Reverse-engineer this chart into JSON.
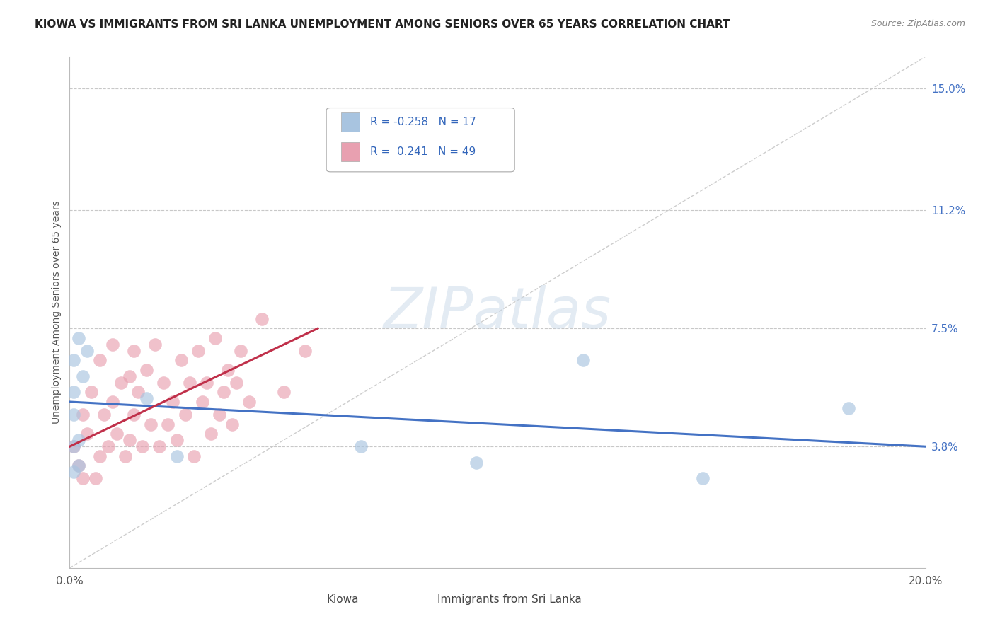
{
  "title": "KIOWA VS IMMIGRANTS FROM SRI LANKA UNEMPLOYMENT AMONG SENIORS OVER 65 YEARS CORRELATION CHART",
  "source": "Source: ZipAtlas.com",
  "ylabel": "Unemployment Among Seniors over 65 years",
  "xlim": [
    0.0,
    0.2
  ],
  "ylim": [
    0.0,
    0.16
  ],
  "ytick_right_vals": [
    0.038,
    0.075,
    0.112,
    0.15
  ],
  "ytick_right_labels": [
    "3.8%",
    "7.5%",
    "11.2%",
    "15.0%"
  ],
  "watermark": "ZIPatlas",
  "legend_r1": "-0.258",
  "legend_n1": "17",
  "legend_r2": "0.241",
  "legend_n2": "49",
  "blue_color": "#a8c4e0",
  "pink_color": "#e8a0b0",
  "blue_line_color": "#4472c4",
  "pink_line_color": "#c0304a",
  "grid_color": "#c8c8c8",
  "kiowa_x": [
    0.001,
    0.001,
    0.001,
    0.001,
    0.001,
    0.002,
    0.002,
    0.002,
    0.003,
    0.004,
    0.018,
    0.025,
    0.068,
    0.095,
    0.12,
    0.148,
    0.182
  ],
  "kiowa_y": [
    0.03,
    0.038,
    0.048,
    0.055,
    0.065,
    0.032,
    0.04,
    0.072,
    0.06,
    0.068,
    0.053,
    0.035,
    0.038,
    0.033,
    0.065,
    0.028,
    0.05
  ],
  "srilanka_x": [
    0.001,
    0.002,
    0.003,
    0.003,
    0.004,
    0.005,
    0.006,
    0.007,
    0.007,
    0.008,
    0.009,
    0.01,
    0.01,
    0.011,
    0.012,
    0.013,
    0.014,
    0.014,
    0.015,
    0.015,
    0.016,
    0.017,
    0.018,
    0.019,
    0.02,
    0.021,
    0.022,
    0.023,
    0.024,
    0.025,
    0.026,
    0.027,
    0.028,
    0.029,
    0.03,
    0.031,
    0.032,
    0.033,
    0.034,
    0.035,
    0.036,
    0.037,
    0.038,
    0.039,
    0.04,
    0.042,
    0.045,
    0.05,
    0.055
  ],
  "srilanka_y": [
    0.038,
    0.032,
    0.048,
    0.028,
    0.042,
    0.055,
    0.028,
    0.065,
    0.035,
    0.048,
    0.038,
    0.052,
    0.07,
    0.042,
    0.058,
    0.035,
    0.06,
    0.04,
    0.068,
    0.048,
    0.055,
    0.038,
    0.062,
    0.045,
    0.07,
    0.038,
    0.058,
    0.045,
    0.052,
    0.04,
    0.065,
    0.048,
    0.058,
    0.035,
    0.068,
    0.052,
    0.058,
    0.042,
    0.072,
    0.048,
    0.055,
    0.062,
    0.045,
    0.058,
    0.068,
    0.052,
    0.078,
    0.055,
    0.068
  ],
  "kiowa_trend_x": [
    0.0,
    0.2
  ],
  "kiowa_trend_y": [
    0.052,
    0.038
  ],
  "srilanka_trend_x": [
    0.0,
    0.058
  ],
  "srilanka_trend_y": [
    0.038,
    0.075
  ]
}
